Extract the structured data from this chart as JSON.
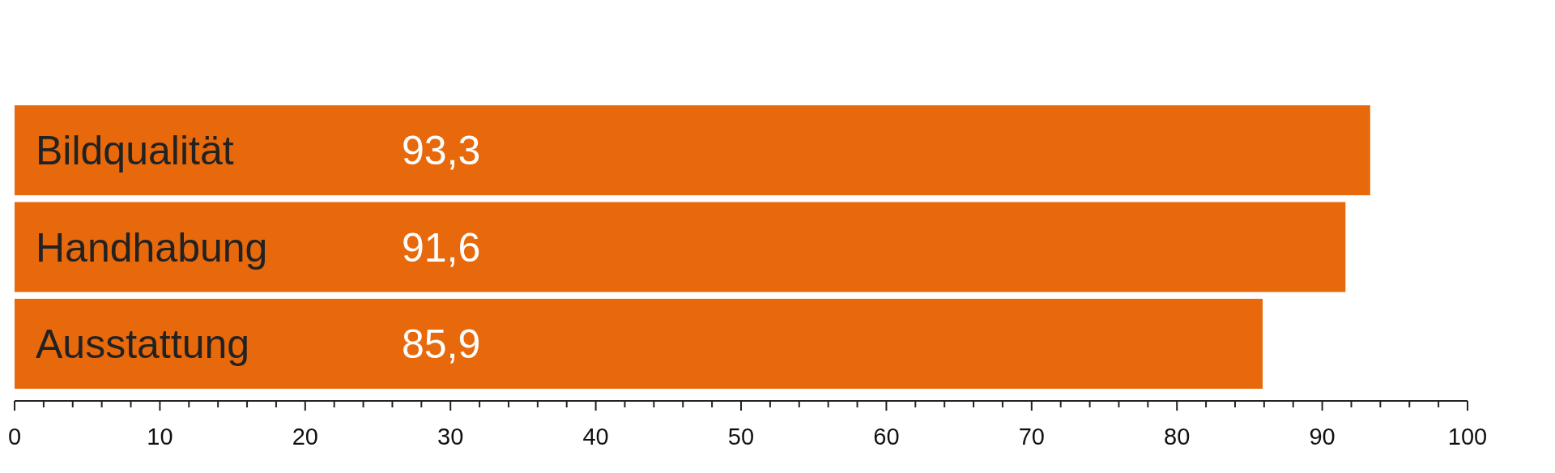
{
  "chart_data": {
    "type": "bar",
    "orientation": "horizontal",
    "categories": [
      "Bildqualität",
      "Handhabung",
      "Ausstattung"
    ],
    "values": [
      93.3,
      91.6,
      85.9
    ],
    "value_labels": [
      "93,3",
      "91,6",
      "85,9"
    ],
    "color": "#e8690b",
    "xlim": [
      0,
      100
    ],
    "xticks": [
      0,
      {
        "value": 2,
        "label": null
      },
      {
        "value": 4,
        "label": null
      },
      {
        "value": 6,
        "label": null
      },
      {
        "value": 8,
        "label": null
      },
      10,
      {
        "value": 12,
        "label": null
      },
      {
        "value": 14,
        "label": null
      },
      {
        "value": 16,
        "label": null
      },
      {
        "value": 18,
        "label": null
      },
      20,
      {
        "value": 22,
        "label": null
      },
      {
        "value": 24,
        "label": null
      },
      {
        "value": 26,
        "label": null
      },
      {
        "value": 28,
        "label": null
      },
      30,
      {
        "value": 32,
        "label": null
      },
      {
        "value": 34,
        "label": null
      },
      {
        "value": 36,
        "label": null
      },
      {
        "value": 38,
        "label": null
      },
      40,
      {
        "value": 42,
        "label": null
      },
      {
        "value": 44,
        "label": null
      },
      {
        "value": 46,
        "label": null
      },
      {
        "value": 48,
        "label": null
      },
      50,
      {
        "value": 52,
        "label": null
      },
      {
        "value": 54,
        "label": null
      },
      {
        "value": 56,
        "label": null
      },
      {
        "value": 58,
        "label": null
      },
      60,
      {
        "value": 62,
        "label": null
      },
      {
        "value": 64,
        "label": null
      },
      {
        "value": 66,
        "label": null
      },
      {
        "value": 68,
        "label": null
      },
      70,
      {
        "value": 72,
        "label": null
      },
      {
        "value": 74,
        "label": null
      },
      {
        "value": 76,
        "label": null
      },
      {
        "value": 78,
        "label": null
      },
      80,
      {
        "value": 82,
        "label": null
      },
      {
        "value": 84,
        "label": null
      },
      {
        "value": 86,
        "label": null
      },
      {
        "value": 88,
        "label": null
      },
      90,
      {
        "value": 92,
        "label": null
      },
      {
        "value": 94,
        "label": null
      },
      {
        "value": 96,
        "label": null
      },
      {
        "value": 98,
        "label": null
      },
      100
    ],
    "tick_labels": "x"
  }
}
